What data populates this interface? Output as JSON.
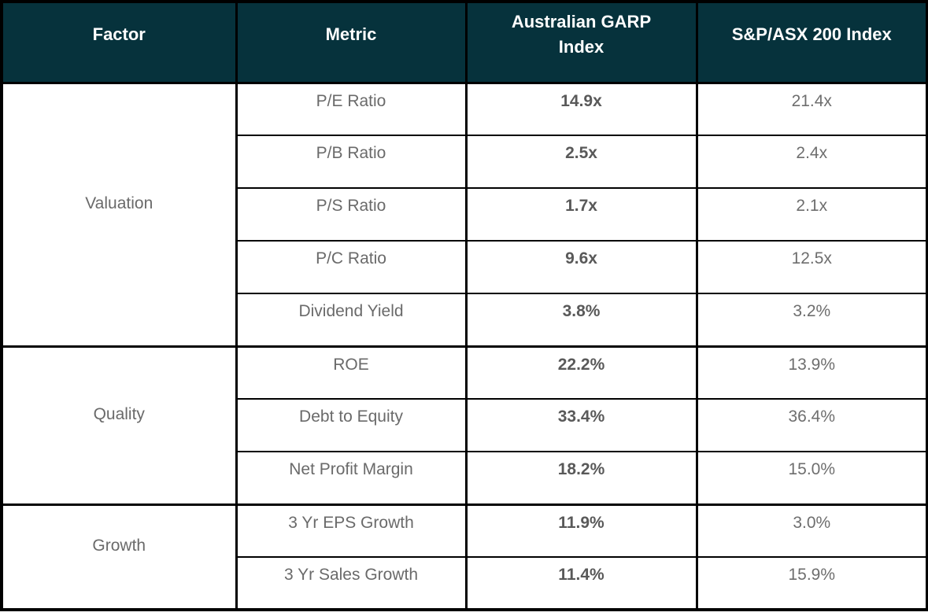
{
  "chart_data": {
    "type": "table",
    "columns": [
      "Factor",
      "Metric",
      "Australian GARP Index",
      "S&P/ASX 200 Index"
    ],
    "sections": [
      {
        "factor": "Valuation",
        "rows": [
          {
            "metric": "P/E Ratio",
            "garp": "14.9x",
            "asx": "21.4x"
          },
          {
            "metric": "P/B Ratio",
            "garp": "2.5x",
            "asx": "2.4x"
          },
          {
            "metric": "P/S Ratio",
            "garp": "1.7x",
            "asx": "2.1x"
          },
          {
            "metric": "P/C Ratio",
            "garp": "9.6x",
            "asx": "12.5x"
          },
          {
            "metric": "Dividend Yield",
            "garp": "3.8%",
            "asx": "3.2%"
          }
        ]
      },
      {
        "factor": "Quality",
        "rows": [
          {
            "metric": "ROE",
            "garp": "22.2%",
            "asx": "13.9%"
          },
          {
            "metric": "Debt to Equity",
            "garp": "33.4%",
            "asx": "36.4%"
          },
          {
            "metric": "Net Profit Margin",
            "garp": "18.2%",
            "asx": "15.0%"
          }
        ]
      },
      {
        "factor": "Growth",
        "rows": [
          {
            "metric": "3 Yr EPS Growth",
            "garp": "11.9%",
            "asx": "3.0%"
          },
          {
            "metric": "3 Yr Sales Growth",
            "garp": "11.4%",
            "asx": "15.9%"
          }
        ]
      }
    ]
  },
  "colors": {
    "header_bg": "#06323c",
    "header_text": "#ffffff",
    "border": "#000000",
    "metric_text": "#6a6a6a",
    "garp_text": "#595959",
    "asx_text": "#6e6e6e",
    "factor_text": "#6a6a6a",
    "page_bg": "#ffffff"
  }
}
